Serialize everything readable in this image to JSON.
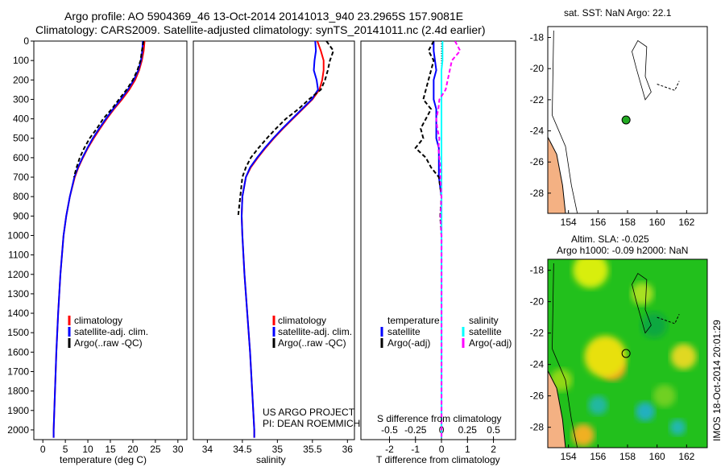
{
  "title": {
    "line1": "Argo profile: AO 5904369_46 13-Oct-2014 20141013_940 23.2965S 157.9081E",
    "line2": "Climatology: CARS2009. Satellite-adjusted climatology: synTS_20141011.nc (2.4d earlier)"
  },
  "colors": {
    "clim": "#ff0000",
    "sat": "#0000ff",
    "argo": "#000000",
    "sat_s": "#00ffff",
    "argo_s": "#ff00ff",
    "land": "#f4b183",
    "marker": "#22aa22"
  },
  "chart_data": [
    {
      "type": "line",
      "name": "temperature",
      "xlabel": "temperature (deg C)",
      "ylabel": "",
      "xlim": [
        -2,
        32
      ],
      "ylim": [
        2050,
        0
      ],
      "xticks": [
        0,
        5,
        10,
        15,
        20,
        25,
        30
      ],
      "yticks": [
        0,
        100,
        200,
        300,
        400,
        500,
        600,
        700,
        800,
        900,
        1000,
        1100,
        1200,
        1300,
        1400,
        1500,
        1600,
        1700,
        1800,
        1900,
        2000
      ],
      "depth": [
        0,
        50,
        100,
        150,
        200,
        250,
        300,
        350,
        400,
        450,
        500,
        550,
        600,
        650,
        700,
        800,
        900,
        1000,
        1200,
        1400,
        1600,
        1800,
        2000,
        2040
      ],
      "series": [
        {
          "name": "climatology",
          "color_key": "clim",
          "style": "solid",
          "values": [
            22.6,
            22.4,
            22.0,
            21.4,
            20.5,
            19.2,
            17.6,
            15.8,
            14.2,
            12.7,
            11.3,
            10.0,
            8.9,
            7.9,
            7.1,
            6.0,
            5.2,
            4.6,
            3.9,
            3.4,
            3.0,
            2.7,
            2.4,
            2.4
          ]
        },
        {
          "name": "satellite-adj. clim.",
          "color_key": "sat",
          "style": "solid",
          "values": [
            22.2,
            22.1,
            21.8,
            21.2,
            20.2,
            18.9,
            17.3,
            15.6,
            14.0,
            12.5,
            11.1,
            9.9,
            8.8,
            7.8,
            7.0,
            6.0,
            5.2,
            4.6,
            3.9,
            3.4,
            3.0,
            2.7,
            2.4,
            2.4
          ]
        },
        {
          "name": "Argo(..raw -QC)",
          "color_key": "argo",
          "style": "dash",
          "values": [
            22.4,
            22.0,
            21.7,
            21.0,
            20.0,
            18.6,
            16.9,
            15.3,
            13.4,
            12.0,
            10.4,
            9.2,
            8.2,
            7.5,
            6.9
          ]
        }
      ]
    },
    {
      "type": "line",
      "name": "salinity",
      "xlabel": "salinity",
      "xlim": [
        33.8,
        36.1
      ],
      "ylim": [
        2050,
        0
      ],
      "xticks": [
        34,
        34.5,
        35,
        35.5,
        36
      ],
      "depth": [
        0,
        50,
        100,
        150,
        200,
        250,
        300,
        350,
        400,
        450,
        500,
        550,
        600,
        650,
        700,
        800,
        900,
        1000,
        1200,
        1400,
        1600,
        1800,
        2000,
        2040
      ],
      "series": [
        {
          "name": "climatology",
          "color_key": "clim",
          "style": "solid",
          "values": [
            35.57,
            35.62,
            35.66,
            35.66,
            35.64,
            35.6,
            35.5,
            35.36,
            35.22,
            35.08,
            34.95,
            34.83,
            34.72,
            34.62,
            34.55,
            34.5,
            34.49,
            34.5,
            34.53,
            34.57,
            34.61,
            34.64,
            34.67,
            34.67
          ]
        },
        {
          "name": "satellite-adj. clim.",
          "color_key": "sat",
          "style": "solid",
          "values": [
            35.54,
            35.55,
            35.53,
            35.52,
            35.56,
            35.58,
            35.49,
            35.35,
            35.21,
            35.07,
            34.94,
            34.82,
            34.71,
            34.61,
            34.55,
            34.5,
            34.49,
            34.5,
            34.53,
            34.57,
            34.61,
            34.64,
            34.67,
            34.67
          ]
        },
        {
          "name": "Argo(..raw -QC)",
          "color_key": "argo",
          "style": "dash",
          "values": [
            35.7,
            35.8,
            35.75,
            35.72,
            35.68,
            35.62,
            35.45,
            35.3,
            35.12,
            34.98,
            34.85,
            34.73,
            34.62,
            34.55,
            34.5,
            34.47,
            34.44
          ]
        }
      ]
    },
    {
      "type": "line",
      "name": "difference",
      "xlabel": "T difference from climatology",
      "xlabel2": "S difference from climatology",
      "xlim": [
        -3.1,
        2.85
      ],
      "xlim_s": [
        -0.775,
        0.7125
      ],
      "ylim": [
        2050,
        0
      ],
      "xticks": [
        -2,
        -1,
        0,
        1,
        2
      ],
      "xticks_s": [
        "-0.5",
        "-0.25",
        "0",
        "0.25",
        "0.5"
      ],
      "xticks_s_vals": [
        -0.5,
        -0.25,
        0,
        0.25,
        0.5
      ],
      "depth": [
        0,
        50,
        100,
        150,
        200,
        250,
        300,
        350,
        400,
        450,
        500,
        550,
        600,
        650,
        700,
        800,
        900,
        1000,
        1200,
        1400,
        1600,
        1800,
        2000,
        2040
      ],
      "series": [
        {
          "name": "satellite",
          "group": "temperature",
          "color_key": "sat",
          "style": "solid",
          "values": [
            -0.3,
            -0.3,
            -0.25,
            -0.2,
            -0.3,
            -0.3,
            -0.3,
            -0.2,
            -0.2,
            -0.2,
            -0.2,
            -0.1,
            -0.1,
            -0.1,
            -0.1,
            0,
            0,
            0,
            0,
            0,
            0,
            0,
            0,
            0
          ]
        },
        {
          "name": "Argo(-adj)",
          "group": "temperature",
          "color_key": "argo",
          "style": "dash",
          "values": [
            -0.3,
            -0.5,
            -0.3,
            -0.4,
            -0.5,
            -0.6,
            -0.7,
            -0.4,
            -0.6,
            -0.8,
            -0.7,
            -1.0,
            -0.6,
            -0.4,
            -0.1,
            0,
            -0.05,
            0,
            0,
            0,
            0,
            0,
            0,
            0
          ]
        },
        {
          "name": "satellite",
          "group": "salinity",
          "color_key": "sat_s",
          "style": "solid",
          "values": [
            0.01,
            0.01,
            0.01,
            0.0,
            0.0,
            0.0,
            0.0,
            0.0,
            0.0,
            0.0,
            0.0,
            0.0,
            0.0,
            0.0,
            0.0,
            0.0,
            0.0,
            0.0,
            0.0,
            0.0,
            0.0,
            0.0,
            0.0,
            0.0
          ]
        },
        {
          "name": "Argo(-adj)",
          "group": "salinity",
          "color_key": "argo_s",
          "style": "dash",
          "values": [
            0.13,
            0.18,
            0.1,
            0.08,
            0.06,
            0.04,
            -0.02,
            -0.03,
            -0.05,
            -0.04,
            -0.02,
            -0.03,
            -0.02,
            -0.01,
            -0.01,
            0,
            -0.01,
            0,
            0,
            0,
            0,
            0,
            0,
            0
          ]
        }
      ]
    }
  ],
  "legend": {
    "clim": "climatology",
    "sat": "satellite-adj. clim.",
    "argo": "Argo(..raw -QC)",
    "diff_t_head": "temperature",
    "diff_s_head": "salinity",
    "diff_sat": "satellite",
    "diff_argo": "Argo(-adj)"
  },
  "credits": {
    "line1": "US ARGO PROJECT",
    "line2": "PI: DEAN ROEMMICH"
  },
  "map_sst": {
    "title": "sat. SST: NaN Argo: 22.1",
    "lon_ticks": [
      154,
      156,
      158,
      160,
      162
    ],
    "lat_ticks": [
      -18,
      -20,
      -22,
      -24,
      -26,
      -28
    ],
    "lon": 157.9,
    "lat": -23.3
  },
  "map_sla": {
    "title1": "Altim. SLA: -0.025",
    "title2": "Argo h1000: -0.09 h2000: NaN",
    "lon_ticks": [
      154,
      156,
      158,
      160,
      162
    ],
    "lat_ticks": [
      -18,
      -20,
      -22,
      -24,
      -26,
      -28
    ]
  },
  "timestamp": "IMOS 18-Oct-2014 20:01:29"
}
